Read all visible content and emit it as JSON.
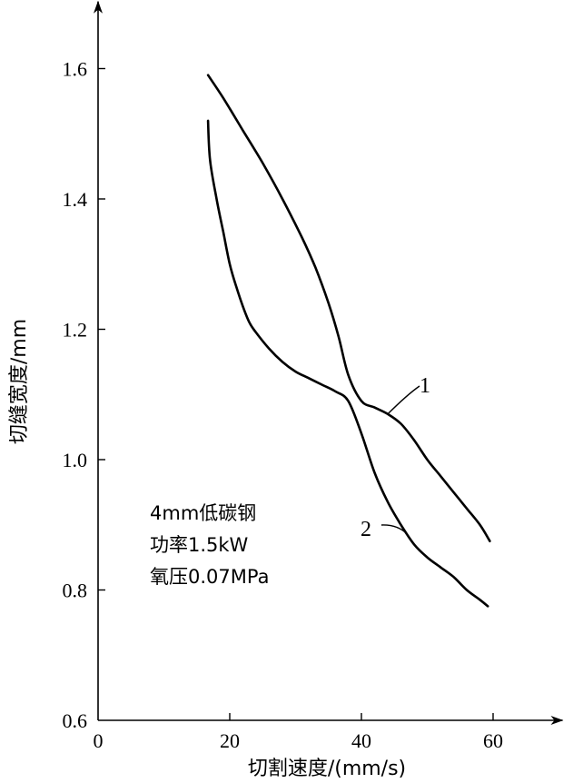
{
  "chart_data": {
    "type": "line",
    "title": "",
    "xlabel": "切割速度/(mm/s)",
    "ylabel": "切缝宽度/mm",
    "xlim": [
      0,
      70
    ],
    "ylim": [
      0.6,
      1.7
    ],
    "x_ticks": [
      "0",
      "20",
      "40",
      "60"
    ],
    "y_ticks": [
      "0.6",
      "0.8",
      "1.0",
      "1.2",
      "1.4",
      "1.6"
    ],
    "grid": false,
    "legend": "none",
    "series": [
      {
        "name": "1",
        "x": [
          16.7,
          19,
          22,
          25,
          28,
          31,
          33,
          35,
          36.5,
          38,
          40,
          42,
          44,
          46,
          48,
          50,
          52,
          54,
          56,
          58,
          59.5
        ],
        "y": [
          1.59,
          1.555,
          1.505,
          1.455,
          1.4,
          1.34,
          1.295,
          1.24,
          1.19,
          1.13,
          1.09,
          1.08,
          1.07,
          1.055,
          1.03,
          1.0,
          0.975,
          0.95,
          0.925,
          0.9,
          0.875
        ]
      },
      {
        "name": "2",
        "x": [
          16.7,
          17,
          18,
          19,
          20,
          21,
          22,
          23,
          24,
          26,
          28,
          30,
          32,
          34,
          36,
          38,
          40,
          42,
          44,
          46,
          48,
          50,
          52,
          54,
          56,
          58,
          59.2
        ],
        "y": [
          1.52,
          1.46,
          1.4,
          1.35,
          1.3,
          1.265,
          1.235,
          1.21,
          1.195,
          1.17,
          1.15,
          1.135,
          1.125,
          1.115,
          1.105,
          1.09,
          1.04,
          0.98,
          0.935,
          0.9,
          0.87,
          0.85,
          0.835,
          0.82,
          0.8,
          0.785,
          0.775
        ]
      }
    ],
    "annotation_lines": [
      "4mm低碳钢",
      "功率1.5kW",
      "氧压0.07MPa"
    ]
  }
}
